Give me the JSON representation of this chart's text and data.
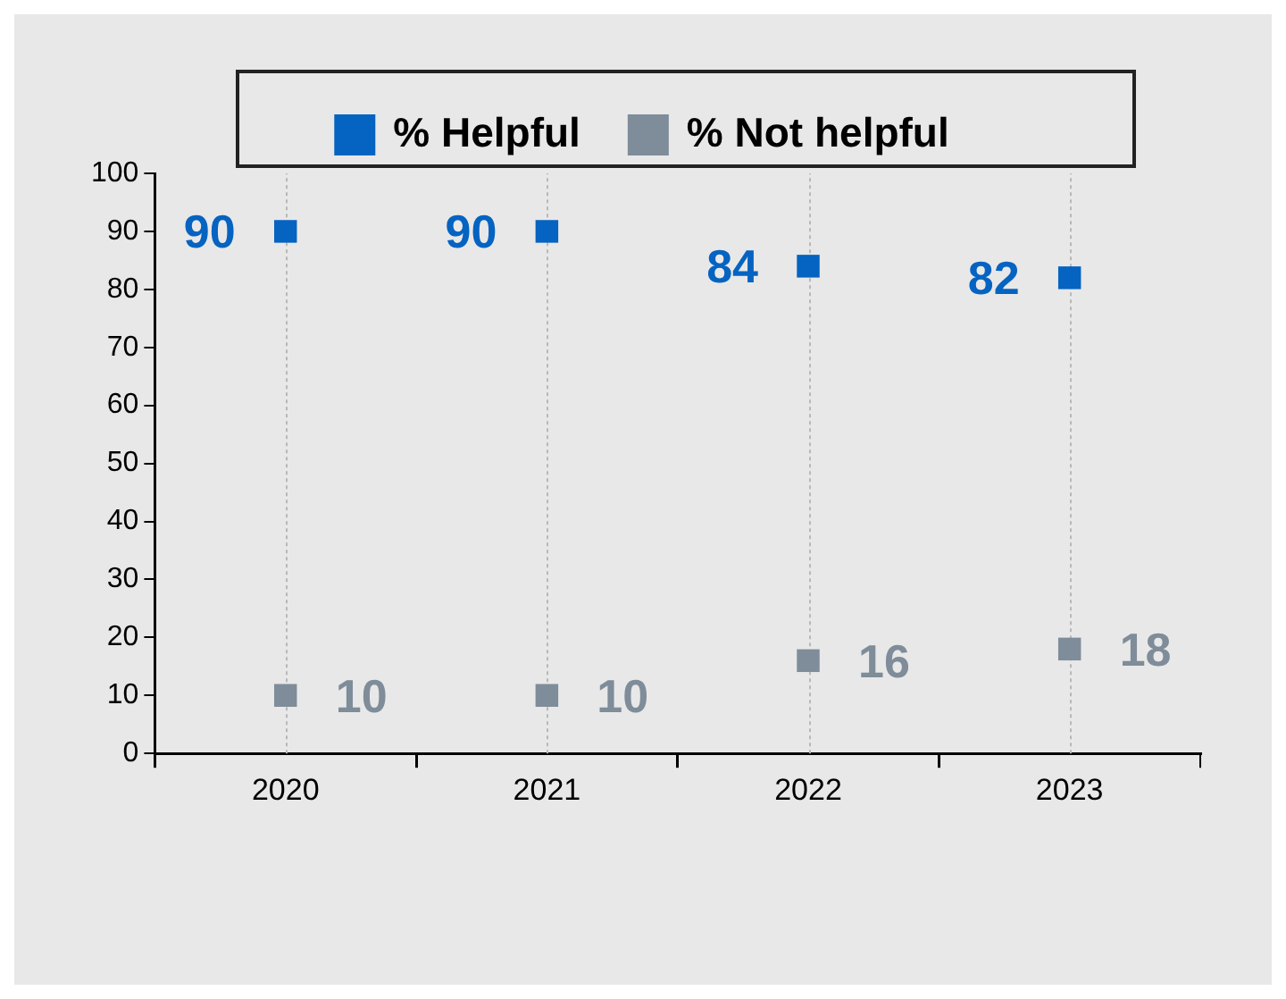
{
  "chart_data": {
    "type": "scatter",
    "categories": [
      "2020",
      "2021",
      "2022",
      "2023"
    ],
    "series": [
      {
        "name": "% Helpful",
        "color": "#0563c1",
        "values": [
          90,
          90,
          84,
          82
        ]
      },
      {
        "name": "% Not helpful",
        "color": "#7f8c99",
        "values": [
          10,
          10,
          16,
          18
        ]
      }
    ],
    "ylim": [
      0,
      100
    ],
    "yticks": [
      0,
      10,
      20,
      30,
      40,
      50,
      60,
      70,
      80,
      90,
      100
    ],
    "grid": "x",
    "marker": "square",
    "legend": "top",
    "data_labels": true
  }
}
